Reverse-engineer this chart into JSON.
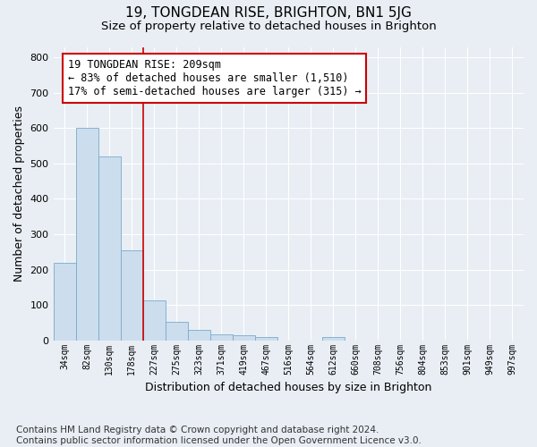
{
  "title_line1": "19, TONGDEAN RISE, BRIGHTON, BN1 5JG",
  "title_line2": "Size of property relative to detached houses in Brighton",
  "xlabel": "Distribution of detached houses by size in Brighton",
  "ylabel": "Number of detached properties",
  "footer_line1": "Contains HM Land Registry data © Crown copyright and database right 2024.",
  "footer_line2": "Contains public sector information licensed under the Open Government Licence v3.0.",
  "bar_labels": [
    "34sqm",
    "82sqm",
    "130sqm",
    "178sqm",
    "227sqm",
    "275sqm",
    "323sqm",
    "371sqm",
    "419sqm",
    "467sqm",
    "516sqm",
    "564sqm",
    "612sqm",
    "660sqm",
    "708sqm",
    "756sqm",
    "804sqm",
    "853sqm",
    "901sqm",
    "949sqm",
    "997sqm"
  ],
  "bar_values": [
    218,
    600,
    520,
    255,
    113,
    52,
    30,
    18,
    14,
    10,
    0,
    0,
    8,
    0,
    0,
    0,
    0,
    0,
    0,
    0,
    0
  ],
  "bar_color": "#ccdded",
  "bar_edgecolor": "#7aabcc",
  "vline_x": 3.5,
  "vline_color": "#cc0000",
  "annotation_text": "19 TONGDEAN RISE: 209sqm\n← 83% of detached houses are smaller (1,510)\n17% of semi-detached houses are larger (315) →",
  "annotation_box_facecolor": "#ffffff",
  "annotation_box_edgecolor": "#cc0000",
  "ylim": [
    0,
    830
  ],
  "yticks": [
    0,
    100,
    200,
    300,
    400,
    500,
    600,
    700,
    800
  ],
  "background_color": "#e8eef4",
  "title1_fontsize": 11,
  "title2_fontsize": 9.5,
  "annotation_fontsize": 8.5,
  "footer_fontsize": 7.5,
  "axis_label_fontsize": 9,
  "tick_fontsize": 8
}
